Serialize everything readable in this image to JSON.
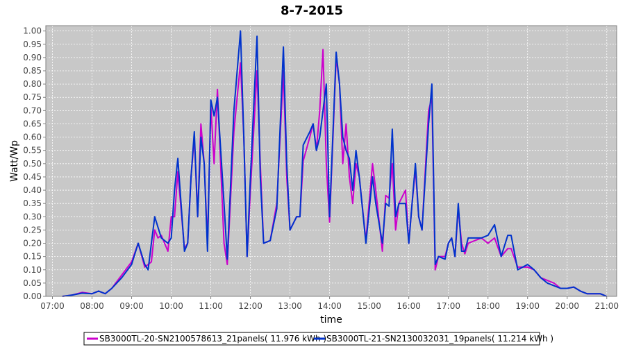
{
  "chart_data": {
    "type": "line",
    "title": "8-7-2015",
    "xlabel": "time",
    "ylabel": "Watt/Wp",
    "xlim": [
      "06:50",
      "21:15"
    ],
    "ylim": [
      0,
      1.02
    ],
    "xticks": [
      "07:00",
      "08:00",
      "09:00",
      "10:00",
      "11:00",
      "12:00",
      "13:00",
      "14:00",
      "15:00",
      "16:00",
      "17:00",
      "18:00",
      "19:00",
      "20:00",
      "21:00"
    ],
    "yticks": [
      "0.00",
      "0.05",
      "0.10",
      "0.15",
      "0.20",
      "0.25",
      "0.30",
      "0.35",
      "0.40",
      "0.45",
      "0.50",
      "0.55",
      "0.60",
      "0.65",
      "0.70",
      "0.75",
      "0.80",
      "0.85",
      "0.90",
      "0.95",
      "1.00"
    ],
    "grid": true,
    "legend_position": "bottom",
    "plot_background": "#c8c8c8",
    "series": [
      {
        "name": "SB3000TL-20-SN2100578613_21panels( 11.976 kWh )",
        "color": "#cc00cc",
        "points": [
          [
            "07:15",
            0.0
          ],
          [
            "07:30",
            0.005
          ],
          [
            "07:45",
            0.015
          ],
          [
            "08:00",
            0.01
          ],
          [
            "08:10",
            0.02
          ],
          [
            "08:20",
            0.01
          ],
          [
            "08:30",
            0.03
          ],
          [
            "08:45",
            0.08
          ],
          [
            "09:00",
            0.13
          ],
          [
            "09:10",
            0.2
          ],
          [
            "09:20",
            0.11
          ],
          [
            "09:30",
            0.13
          ],
          [
            "09:35",
            0.25
          ],
          [
            "09:40",
            0.22
          ],
          [
            "09:45",
            0.23
          ],
          [
            "09:55",
            0.17
          ],
          [
            "10:00",
            0.3
          ],
          [
            "10:05",
            0.3
          ],
          [
            "10:10",
            0.47
          ],
          [
            "10:20",
            0.18
          ],
          [
            "10:25",
            0.2
          ],
          [
            "10:30",
            0.45
          ],
          [
            "10:35",
            0.6
          ],
          [
            "10:40",
            0.3
          ],
          [
            "10:45",
            0.65
          ],
          [
            "10:50",
            0.5
          ],
          [
            "10:55",
            0.2
          ],
          [
            "11:00",
            0.72
          ],
          [
            "11:05",
            0.5
          ],
          [
            "11:10",
            0.78
          ],
          [
            "11:20",
            0.2
          ],
          [
            "11:25",
            0.12
          ],
          [
            "11:35",
            0.62
          ],
          [
            "11:45",
            0.88
          ],
          [
            "11:50",
            0.6
          ],
          [
            "11:55",
            0.15
          ],
          [
            "12:00",
            0.4
          ],
          [
            "12:10",
            0.85
          ],
          [
            "12:15",
            0.5
          ],
          [
            "12:20",
            0.2
          ],
          [
            "12:30",
            0.21
          ],
          [
            "12:40",
            0.35
          ],
          [
            "12:50",
            0.85
          ],
          [
            "12:55",
            0.45
          ],
          [
            "13:00",
            0.25
          ],
          [
            "13:10",
            0.3
          ],
          [
            "13:15",
            0.3
          ],
          [
            "13:20",
            0.51
          ],
          [
            "13:30",
            0.6
          ],
          [
            "13:35",
            0.65
          ],
          [
            "13:40",
            0.55
          ],
          [
            "13:45",
            0.7
          ],
          [
            "13:50",
            0.93
          ],
          [
            "13:55",
            0.5
          ],
          [
            "14:00",
            0.28
          ],
          [
            "14:10",
            0.9
          ],
          [
            "14:15",
            0.8
          ],
          [
            "14:20",
            0.5
          ],
          [
            "14:25",
            0.65
          ],
          [
            "14:30",
            0.45
          ],
          [
            "14:35",
            0.35
          ],
          [
            "14:40",
            0.5
          ],
          [
            "14:45",
            0.45
          ],
          [
            "14:55",
            0.21
          ],
          [
            "15:05",
            0.5
          ],
          [
            "15:10",
            0.4
          ],
          [
            "15:20",
            0.17
          ],
          [
            "15:25",
            0.38
          ],
          [
            "15:30",
            0.37
          ],
          [
            "15:35",
            0.5
          ],
          [
            "15:40",
            0.25
          ],
          [
            "15:45",
            0.35
          ],
          [
            "15:55",
            0.4
          ],
          [
            "16:00",
            0.2
          ],
          [
            "16:05",
            0.35
          ],
          [
            "16:10",
            0.48
          ],
          [
            "16:15",
            0.3
          ],
          [
            "16:20",
            0.25
          ],
          [
            "16:30",
            0.7
          ],
          [
            "16:35",
            0.75
          ],
          [
            "16:40",
            0.1
          ],
          [
            "16:45",
            0.15
          ],
          [
            "16:55",
            0.15
          ],
          [
            "17:00",
            0.2
          ],
          [
            "17:05",
            0.22
          ],
          [
            "17:10",
            0.15
          ],
          [
            "17:15",
            0.33
          ],
          [
            "17:20",
            0.2
          ],
          [
            "17:25",
            0.16
          ],
          [
            "17:30",
            0.2
          ],
          [
            "17:40",
            0.21
          ],
          [
            "17:50",
            0.22
          ],
          [
            "18:00",
            0.2
          ],
          [
            "18:10",
            0.22
          ],
          [
            "18:20",
            0.15
          ],
          [
            "18:30",
            0.18
          ],
          [
            "18:35",
            0.18
          ],
          [
            "18:45",
            0.11
          ],
          [
            "19:00",
            0.11
          ],
          [
            "19:10",
            0.1
          ],
          [
            "19:20",
            0.07
          ],
          [
            "19:30",
            0.06
          ],
          [
            "19:40",
            0.05
          ],
          [
            "19:50",
            0.03
          ],
          [
            "20:00",
            0.03
          ],
          [
            "20:10",
            0.035
          ],
          [
            "20:20",
            0.02
          ],
          [
            "20:30",
            0.01
          ],
          [
            "20:40",
            0.01
          ],
          [
            "20:50",
            0.01
          ],
          [
            "21:00",
            0.0
          ]
        ]
      },
      {
        "name": "SB3000TL-21-SN2130032031_19panels( 11.214 kWh )",
        "color": "#0033cc",
        "points": [
          [
            "07:15",
            0.0
          ],
          [
            "07:30",
            0.005
          ],
          [
            "07:45",
            0.012
          ],
          [
            "08:00",
            0.01
          ],
          [
            "08:10",
            0.02
          ],
          [
            "08:20",
            0.01
          ],
          [
            "08:30",
            0.03
          ],
          [
            "08:45",
            0.07
          ],
          [
            "09:00",
            0.12
          ],
          [
            "09:10",
            0.2
          ],
          [
            "09:20",
            0.12
          ],
          [
            "09:25",
            0.1
          ],
          [
            "09:30",
            0.2
          ],
          [
            "09:35",
            0.3
          ],
          [
            "09:45",
            0.22
          ],
          [
            "09:55",
            0.2
          ],
          [
            "10:00",
            0.22
          ],
          [
            "10:05",
            0.4
          ],
          [
            "10:10",
            0.52
          ],
          [
            "10:20",
            0.17
          ],
          [
            "10:25",
            0.2
          ],
          [
            "10:30",
            0.45
          ],
          [
            "10:35",
            0.62
          ],
          [
            "10:40",
            0.3
          ],
          [
            "10:45",
            0.6
          ],
          [
            "10:50",
            0.5
          ],
          [
            "10:55",
            0.17
          ],
          [
            "11:00",
            0.74
          ],
          [
            "11:05",
            0.68
          ],
          [
            "11:10",
            0.75
          ],
          [
            "11:20",
            0.35
          ],
          [
            "11:25",
            0.14
          ],
          [
            "11:35",
            0.7
          ],
          [
            "11:45",
            1.0
          ],
          [
            "11:50",
            0.6
          ],
          [
            "11:55",
            0.15
          ],
          [
            "12:00",
            0.45
          ],
          [
            "12:10",
            0.98
          ],
          [
            "12:15",
            0.45
          ],
          [
            "12:20",
            0.2
          ],
          [
            "12:30",
            0.21
          ],
          [
            "12:40",
            0.33
          ],
          [
            "12:50",
            0.94
          ],
          [
            "12:55",
            0.5
          ],
          [
            "13:00",
            0.25
          ],
          [
            "13:10",
            0.3
          ],
          [
            "13:15",
            0.3
          ],
          [
            "13:20",
            0.57
          ],
          [
            "13:30",
            0.62
          ],
          [
            "13:35",
            0.65
          ],
          [
            "13:40",
            0.55
          ],
          [
            "13:45",
            0.6
          ],
          [
            "13:55",
            0.8
          ],
          [
            "14:00",
            0.3
          ],
          [
            "14:10",
            0.92
          ],
          [
            "14:15",
            0.8
          ],
          [
            "14:20",
            0.6
          ],
          [
            "14:25",
            0.55
          ],
          [
            "14:30",
            0.52
          ],
          [
            "14:35",
            0.4
          ],
          [
            "14:40",
            0.55
          ],
          [
            "14:45",
            0.45
          ],
          [
            "14:55",
            0.2
          ],
          [
            "15:05",
            0.45
          ],
          [
            "15:10",
            0.35
          ],
          [
            "15:20",
            0.2
          ],
          [
            "15:25",
            0.35
          ],
          [
            "15:30",
            0.34
          ],
          [
            "15:35",
            0.63
          ],
          [
            "15:40",
            0.3
          ],
          [
            "15:45",
            0.35
          ],
          [
            "15:55",
            0.35
          ],
          [
            "16:00",
            0.2
          ],
          [
            "16:05",
            0.35
          ],
          [
            "16:10",
            0.5
          ],
          [
            "16:15",
            0.3
          ],
          [
            "16:20",
            0.25
          ],
          [
            "16:30",
            0.65
          ],
          [
            "16:35",
            0.8
          ],
          [
            "16:40",
            0.12
          ],
          [
            "16:45",
            0.15
          ],
          [
            "16:55",
            0.14
          ],
          [
            "17:00",
            0.2
          ],
          [
            "17:05",
            0.22
          ],
          [
            "17:10",
            0.15
          ],
          [
            "17:15",
            0.35
          ],
          [
            "17:20",
            0.17
          ],
          [
            "17:25",
            0.17
          ],
          [
            "17:30",
            0.22
          ],
          [
            "17:40",
            0.22
          ],
          [
            "17:50",
            0.22
          ],
          [
            "18:00",
            0.23
          ],
          [
            "18:10",
            0.27
          ],
          [
            "18:20",
            0.15
          ],
          [
            "18:30",
            0.23
          ],
          [
            "18:35",
            0.23
          ],
          [
            "18:45",
            0.1
          ],
          [
            "19:00",
            0.12
          ],
          [
            "19:10",
            0.1
          ],
          [
            "19:20",
            0.07
          ],
          [
            "19:30",
            0.05
          ],
          [
            "19:40",
            0.04
          ],
          [
            "19:50",
            0.03
          ],
          [
            "20:00",
            0.03
          ],
          [
            "20:10",
            0.035
          ],
          [
            "20:20",
            0.02
          ],
          [
            "20:30",
            0.01
          ],
          [
            "20:40",
            0.01
          ],
          [
            "20:50",
            0.01
          ],
          [
            "21:00",
            0.0
          ]
        ]
      }
    ]
  }
}
